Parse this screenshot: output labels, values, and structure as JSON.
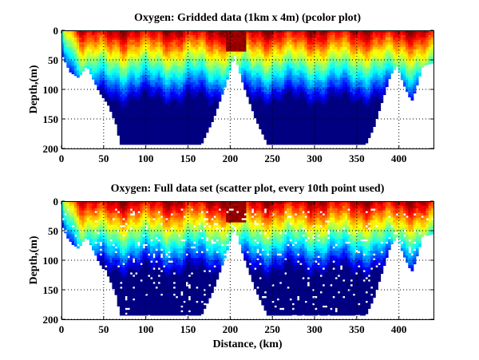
{
  "chart_data": [
    {
      "type": "heatmap",
      "title": "Oxygen: Gridded data (1km x 4m) (pcolor plot)",
      "xlabel": "",
      "ylabel": "Depth,(m)",
      "xlim": [
        0,
        441
      ],
      "ylim": [
        200,
        0
      ],
      "xticks": [
        0,
        50,
        100,
        150,
        200,
        250,
        300,
        350,
        400
      ],
      "yticks": [
        0,
        50,
        100,
        150,
        200
      ],
      "grid": true,
      "colormap": "jet",
      "bottom_profile": {
        "x": [
          0,
          10,
          20,
          30,
          35,
          45,
          55,
          65,
          70,
          90,
          150,
          165,
          180,
          195,
          205,
          215,
          230,
          245,
          260,
          300,
          360,
          370,
          380,
          390,
          398,
          405,
          415,
          420,
          428,
          441
        ],
        "depth": [
          40,
          70,
          80,
          60,
          75,
          105,
          125,
          160,
          195,
          195,
          195,
          195,
          150,
          90,
          40,
          90,
          150,
          195,
          195,
          195,
          195,
          165,
          120,
          75,
          60,
          90,
          120,
          100,
          60,
          55
        ]
      }
    },
    {
      "type": "scatter",
      "title": "Oxygen: Full data set (scatter plot, every 10th point used)",
      "xlabel": "Distance, (km)",
      "ylabel": "Depth,(m)",
      "xlim": [
        0,
        441
      ],
      "ylim": [
        200,
        0
      ],
      "xticks": [
        0,
        50,
        100,
        150,
        200,
        250,
        300,
        350,
        400
      ],
      "yticks": [
        0,
        50,
        100,
        150,
        200
      ],
      "grid": true,
      "colormap": "jet"
    }
  ]
}
